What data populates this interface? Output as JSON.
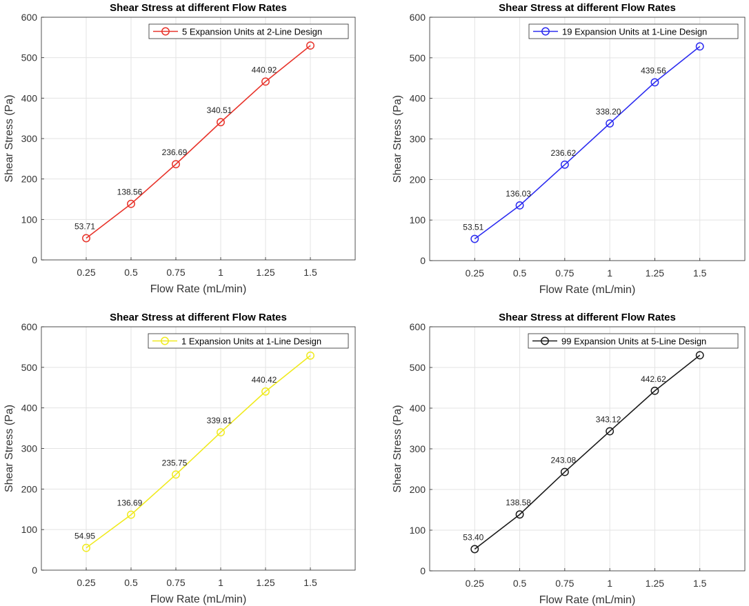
{
  "chart_data": [
    {
      "type": "line",
      "title": "Shear Stress at different Flow Rates",
      "xlabel": "Flow Rate (mL/min)",
      "ylabel": "Shear Stress (Pa)",
      "x": [
        0.25,
        0.5,
        0.75,
        1,
        1.25,
        1.5
      ],
      "x_tick_labels": [
        "0.25",
        "0.5",
        "0.75",
        "1",
        "1.25",
        "1.5"
      ],
      "y_ticks": [
        0,
        100,
        200,
        300,
        400,
        500,
        600
      ],
      "xlim": [
        0,
        1.75
      ],
      "ylim": [
        0,
        600
      ],
      "grid": true,
      "legend_location": "top-right",
      "series": [
        {
          "name": "5 Expansion Units at 2-Line Design",
          "color": "#e8332a",
          "values": [
            53.71,
            138.56,
            236.69,
            340.51,
            440.92,
            530
          ],
          "data_labels": [
            "53.71",
            "138.56",
            "236.69",
            "340.51",
            "440.92",
            ""
          ]
        }
      ]
    },
    {
      "type": "line",
      "title": "Shear Stress at different Flow Rates",
      "xlabel": "Flow Rate (mL/min)",
      "ylabel": "Shear Stress (Pa)",
      "x": [
        0.25,
        0.5,
        0.75,
        1,
        1.25,
        1.5
      ],
      "x_tick_labels": [
        "0.25",
        "0.5",
        "0.75",
        "1",
        "1.25",
        "1.5"
      ],
      "y_ticks": [
        0,
        100,
        200,
        300,
        400,
        500,
        600
      ],
      "xlim": [
        0,
        1.75
      ],
      "ylim": [
        0,
        600
      ],
      "grid": true,
      "legend_location": "top-right",
      "series": [
        {
          "name": "19 Expansion Units at 1-Line Design",
          "color": "#2b2bf0",
          "values": [
            53.51,
            136.03,
            236.62,
            338.2,
            439.56,
            528
          ],
          "data_labels": [
            "53.51",
            "136.03",
            "236.62",
            "338.20",
            "439.56",
            ""
          ]
        }
      ]
    },
    {
      "type": "line",
      "title": "Shear Stress at different Flow Rates",
      "xlabel": "Flow Rate (mL/min)",
      "ylabel": "Shear Stress (Pa)",
      "x": [
        0.25,
        0.5,
        0.75,
        1,
        1.25,
        1.5
      ],
      "x_tick_labels": [
        "0.25",
        "0.5",
        "0.75",
        "1",
        "1.25",
        "1.5"
      ],
      "y_ticks": [
        0,
        100,
        200,
        300,
        400,
        500,
        600
      ],
      "xlim": [
        0,
        1.75
      ],
      "ylim": [
        0,
        600
      ],
      "grid": true,
      "legend_location": "top-right",
      "series": [
        {
          "name": "1 Expansion Units at 1-Line Design",
          "color": "#f0ea1e",
          "values": [
            54.95,
            136.69,
            235.75,
            339.81,
            440.42,
            529
          ],
          "data_labels": [
            "54.95",
            "136.69",
            "235.75",
            "339.81",
            "440.42",
            ""
          ]
        }
      ]
    },
    {
      "type": "line",
      "title": "Shear Stress at different Flow Rates",
      "xlabel": "Flow Rate (mL/min)",
      "ylabel": "Shear Stress (Pa)",
      "x": [
        0.25,
        0.5,
        0.75,
        1,
        1.25,
        1.5
      ],
      "x_tick_labels": [
        "0.25",
        "0.5",
        "0.75",
        "1",
        "1.25",
        "1.5"
      ],
      "y_ticks": [
        0,
        100,
        200,
        300,
        400,
        500,
        600
      ],
      "xlim": [
        0,
        1.75
      ],
      "ylim": [
        0,
        600
      ],
      "grid": true,
      "legend_location": "top-right",
      "series": [
        {
          "name": "99 Expansion Units at 5-Line Design",
          "color": "#1a1a1a",
          "values": [
            53.4,
            138.58,
            243.08,
            343.12,
            442.62,
            530
          ],
          "data_labels": [
            "53.40",
            "138.58",
            "243.08",
            "343.12",
            "442.62",
            ""
          ]
        }
      ]
    }
  ]
}
